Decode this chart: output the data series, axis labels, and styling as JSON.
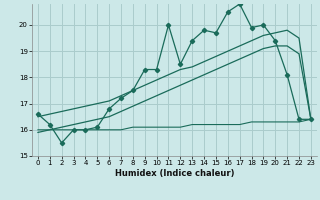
{
  "xlabel": "Humidex (Indice chaleur)",
  "background_color": "#cce8e8",
  "grid_color": "#aacccc",
  "line_color": "#1a6b5a",
  "x": [
    0,
    1,
    2,
    3,
    4,
    5,
    6,
    7,
    8,
    9,
    10,
    11,
    12,
    13,
    14,
    15,
    16,
    17,
    18,
    19,
    20,
    21,
    22,
    23
  ],
  "y_main": [
    16.6,
    16.2,
    15.5,
    16.0,
    16.0,
    16.1,
    16.8,
    17.2,
    17.5,
    18.3,
    18.3,
    20.0,
    18.5,
    19.4,
    19.8,
    19.7,
    20.5,
    20.8,
    19.9,
    20.0,
    19.4,
    18.1,
    16.4,
    16.4
  ],
  "y_line1": [
    16.5,
    16.6,
    16.7,
    16.8,
    16.9,
    17.0,
    17.1,
    17.3,
    17.5,
    17.7,
    17.9,
    18.1,
    18.3,
    18.4,
    18.6,
    18.8,
    19.0,
    19.2,
    19.4,
    19.6,
    19.7,
    19.8,
    19.5,
    16.4
  ],
  "y_line2": [
    15.9,
    16.0,
    16.1,
    16.2,
    16.3,
    16.4,
    16.5,
    16.7,
    16.9,
    17.1,
    17.3,
    17.5,
    17.7,
    17.9,
    18.1,
    18.3,
    18.5,
    18.7,
    18.9,
    19.1,
    19.2,
    19.2,
    18.9,
    16.4
  ],
  "y_flat": [
    16.0,
    16.0,
    16.0,
    16.0,
    16.0,
    16.0,
    16.0,
    16.0,
    16.1,
    16.1,
    16.1,
    16.1,
    16.1,
    16.2,
    16.2,
    16.2,
    16.2,
    16.2,
    16.3,
    16.3,
    16.3,
    16.3,
    16.3,
    16.4
  ],
  "ylim": [
    15.0,
    20.8
  ],
  "xlim": [
    -0.5,
    23.5
  ],
  "yticks": [
    15,
    16,
    17,
    18,
    19,
    20
  ],
  "xticks": [
    0,
    1,
    2,
    3,
    4,
    5,
    6,
    7,
    8,
    9,
    10,
    11,
    12,
    13,
    14,
    15,
    16,
    17,
    18,
    19,
    20,
    21,
    22,
    23
  ],
  "xlabel_fontsize": 6.0,
  "tick_fontsize": 5.0
}
